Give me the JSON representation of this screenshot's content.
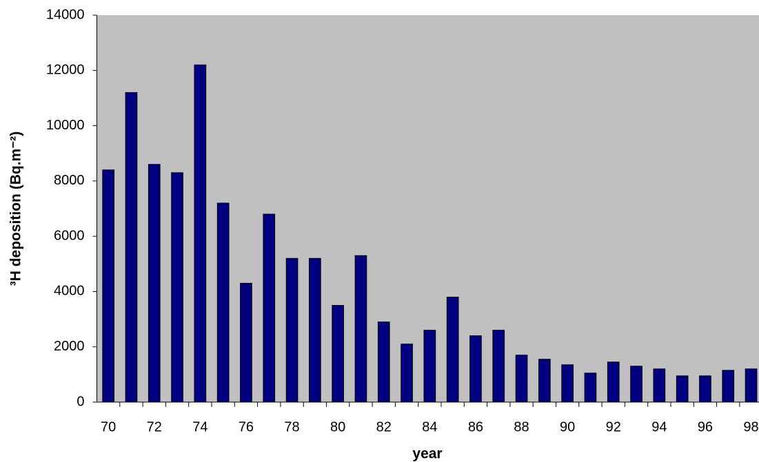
{
  "chart_data": {
    "type": "bar",
    "xlabel": "year",
    "ylabel": "³H deposition (Bq.m⁻²)",
    "categories": [
      "70",
      null,
      "72",
      null,
      "74",
      null,
      "76",
      null,
      "78",
      null,
      "80",
      null,
      "82",
      null,
      "84",
      null,
      "86",
      null,
      "88",
      null,
      "90",
      null,
      "92",
      null,
      "94",
      null,
      "96",
      null,
      "98"
    ],
    "values": [
      8400,
      11200,
      8600,
      8300,
      12200,
      7200,
      4300,
      6800,
      5200,
      5200,
      3500,
      5300,
      2900,
      2100,
      2600,
      3800,
      2400,
      2600,
      1700,
      1550,
      1350,
      1050,
      1450,
      1300,
      1200,
      950,
      950,
      1150,
      1200
    ],
    "color": "#000080",
    "ylim": [
      0,
      14000
    ],
    "yticks": [
      0,
      2000,
      4000,
      6000,
      8000,
      10000,
      12000,
      14000
    ],
    "plot_background": "#c0c0c0"
  }
}
